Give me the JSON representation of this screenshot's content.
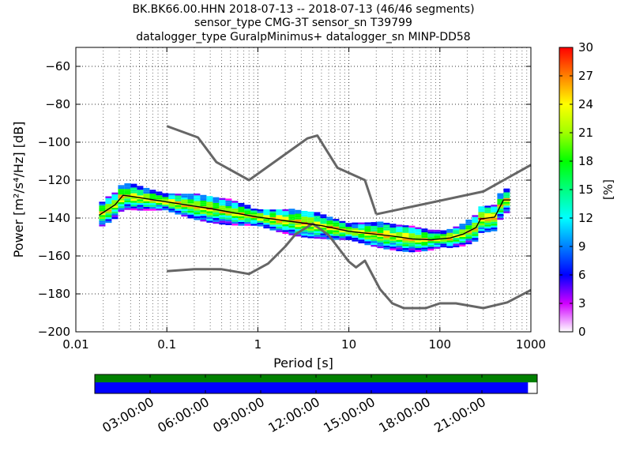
{
  "title": {
    "line1": "BK.BK66.00.HHN   2018-07-13 -- 2018-07-13  (46/46 segments)",
    "line2": "sensor_type CMG-3T sensor_sn T39799",
    "line3": "datalogger_type GuralpMinimus+ datalogger_sn MINP-DD58"
  },
  "chart_data": {
    "type": "heatmap",
    "xlabel": "Period [s]",
    "ylabel": "Power [m²/s⁴/Hz] [dB]",
    "x_scale": "log",
    "xlim": [
      0.01,
      1000
    ],
    "ylim": [
      -200,
      -50
    ],
    "x_ticks": [
      {
        "value": 0.01,
        "label": "0.01"
      },
      {
        "value": 0.1,
        "label": "0.1"
      },
      {
        "value": 1,
        "label": "1"
      },
      {
        "value": 10,
        "label": "10"
      },
      {
        "value": 100,
        "label": "100"
      },
      {
        "value": 1000,
        "label": "1000"
      }
    ],
    "y_ticks": [
      {
        "value": -60,
        "label": "−60"
      },
      {
        "value": -80,
        "label": "−80"
      },
      {
        "value": -100,
        "label": "−100"
      },
      {
        "value": -120,
        "label": "−120"
      },
      {
        "value": -140,
        "label": "−140"
      },
      {
        "value": -160,
        "label": "−160"
      },
      {
        "value": -180,
        "label": "−180"
      },
      {
        "value": -200,
        "label": "−200"
      }
    ],
    "grid": true,
    "colorbar": {
      "label": "[%]",
      "range": [
        0,
        30
      ],
      "ticks": [
        {
          "value": 0,
          "label": "0"
        },
        {
          "value": 3,
          "label": "3"
        },
        {
          "value": 6,
          "label": "6"
        },
        {
          "value": 9,
          "label": "9"
        },
        {
          "value": 12,
          "label": "12"
        },
        {
          "value": 15,
          "label": "15"
        },
        {
          "value": 18,
          "label": "18"
        },
        {
          "value": 21,
          "label": "21"
        },
        {
          "value": 24,
          "label": "24"
        },
        {
          "value": 27,
          "label": "27"
        },
        {
          "value": 30,
          "label": "30"
        }
      ]
    },
    "series": [
      {
        "values": [
          [
            0.1,
            -91.5
          ],
          [
            0.22,
            -97.5
          ],
          [
            0.35,
            -110.5
          ],
          [
            0.8,
            -120
          ],
          [
            3.5,
            -98
          ],
          [
            4.5,
            -96.5
          ],
          [
            7.5,
            -113.5
          ],
          [
            15,
            -120
          ],
          [
            20,
            -138
          ]
        ]
      },
      {
        "values": [
          [
            20,
            -138
          ],
          [
            300,
            -126
          ],
          [
            1000,
            -112
          ]
        ]
      },
      {
        "values": [
          [
            0.1,
            -168
          ],
          [
            0.2,
            -167
          ],
          [
            0.4,
            -167
          ],
          [
            0.8,
            -169.5
          ],
          [
            1.3,
            -164
          ],
          [
            2,
            -155
          ],
          [
            2.6,
            -148.5
          ],
          [
            4,
            -143
          ],
          [
            6,
            -149
          ],
          [
            10,
            -163
          ],
          [
            12,
            -166
          ],
          [
            15,
            -162.5
          ],
          [
            22,
            -177.5
          ],
          [
            30,
            -185
          ],
          [
            40,
            -187.5
          ],
          [
            70,
            -187.5
          ],
          [
            100,
            -185
          ],
          [
            150,
            -185
          ],
          [
            300,
            -187.5
          ],
          [
            550,
            -184.5
          ],
          [
            1000,
            -178
          ]
        ]
      },
      {
        "values": [
          [
            0.018,
            -138.5
          ],
          [
            0.027,
            -133
          ],
          [
            0.033,
            -128
          ],
          [
            0.04,
            -128.5
          ],
          [
            0.1,
            -131.5
          ],
          [
            0.3,
            -135
          ],
          [
            1,
            -139.5
          ],
          [
            3,
            -142.5
          ],
          [
            5,
            -144
          ],
          [
            10,
            -147
          ],
          [
            30,
            -149.5
          ],
          [
            50,
            -151
          ],
          [
            80,
            -151.5
          ],
          [
            130,
            -150.5
          ],
          [
            180,
            -148.5
          ],
          [
            250,
            -145
          ],
          [
            280,
            -140.5
          ],
          [
            400,
            -139.5
          ],
          [
            500,
            -130.5
          ],
          [
            600,
            -130.5
          ]
        ]
      }
    ]
  },
  "time_ticks": [
    {
      "hour": 3,
      "label": "03:00:00"
    },
    {
      "hour": 6,
      "label": "06:00:00"
    },
    {
      "hour": 9,
      "label": "09:00:00"
    },
    {
      "hour": 12,
      "label": "12:00:00"
    },
    {
      "hour": 15,
      "label": "15:00:00"
    },
    {
      "hour": 18,
      "label": "18:00:00"
    },
    {
      "hour": 21,
      "label": "21:00:00"
    }
  ],
  "coverage": {
    "data_hours": [
      0,
      24
    ],
    "segment_hours": [
      0,
      23.5
    ],
    "data_color": "#008000",
    "segment_color": "#0000ff"
  }
}
